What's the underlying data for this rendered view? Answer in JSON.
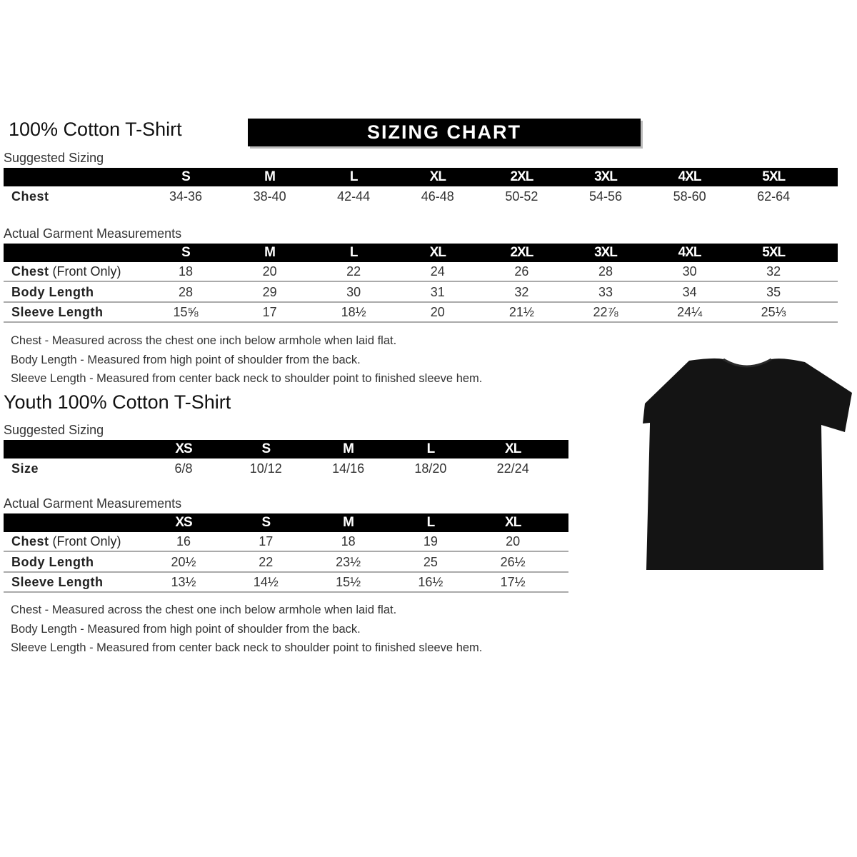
{
  "adult": {
    "title": "100% Cotton T-Shirt",
    "chart_title": "SIZING CHART",
    "suggested_label": "Suggested Sizing",
    "sizes": [
      "S",
      "M",
      "L",
      "XL",
      "2XL",
      "3XL",
      "4XL",
      "5XL"
    ],
    "suggested_rows": [
      {
        "label": "Chest",
        "values": [
          "34-36",
          "38-40",
          "42-44",
          "46-48",
          "50-52",
          "54-56",
          "58-60",
          "62-64"
        ]
      }
    ],
    "actual_label": "Actual Garment Measurements",
    "actual_rows": [
      {
        "label": "Chest",
        "suffix": " (Front Only)",
        "values": [
          "18",
          "20",
          "22",
          "24",
          "26",
          "28",
          "30",
          "32"
        ]
      },
      {
        "label": "Body Length",
        "suffix": "",
        "values": [
          "28",
          "29",
          "30",
          "31",
          "32",
          "33",
          "34",
          "35"
        ]
      },
      {
        "label": "Sleeve Length",
        "suffix": "",
        "values": [
          "15⅝",
          "17",
          "18½",
          "20",
          "21½",
          "22⅞",
          "24¼",
          "25⅓"
        ]
      }
    ],
    "notes": [
      "Chest - Measured across the chest one inch below armhole when laid flat.",
      "Body Length - Measured from high point of shoulder from the back.",
      "Sleeve Length - Measured from center back neck to shoulder point to finished sleeve hem."
    ]
  },
  "youth": {
    "title": "Youth 100% Cotton T-Shirt",
    "suggested_label": "Suggested Sizing",
    "sizes": [
      "XS",
      "S",
      "M",
      "L",
      "XL"
    ],
    "suggested_rows": [
      {
        "label": "Size",
        "values": [
          "6/8",
          "10/12",
          "14/16",
          "18/20",
          "22/24"
        ]
      }
    ],
    "actual_label": "Actual Garment Measurements",
    "actual_rows": [
      {
        "label": "Chest",
        "suffix": " (Front Only)",
        "values": [
          "16",
          "17",
          "18",
          "19",
          "20"
        ]
      },
      {
        "label": "Body Length",
        "suffix": "",
        "values": [
          "20½",
          "22",
          "23½",
          "25",
          "26½"
        ]
      },
      {
        "label": "Sleeve Length",
        "suffix": "",
        "values": [
          "13½",
          "14½",
          "15½",
          "16½",
          "17½"
        ]
      }
    ],
    "notes": [
      "Chest - Measured across the chest one inch below armhole when laid flat.",
      "Body Length - Measured from high point of shoulder from the back.",
      "Sleeve Length - Measured from center back neck to shoulder point to finished sleeve hem."
    ]
  },
  "image": {
    "icon": "black-t-shirt",
    "color": "#111111"
  }
}
